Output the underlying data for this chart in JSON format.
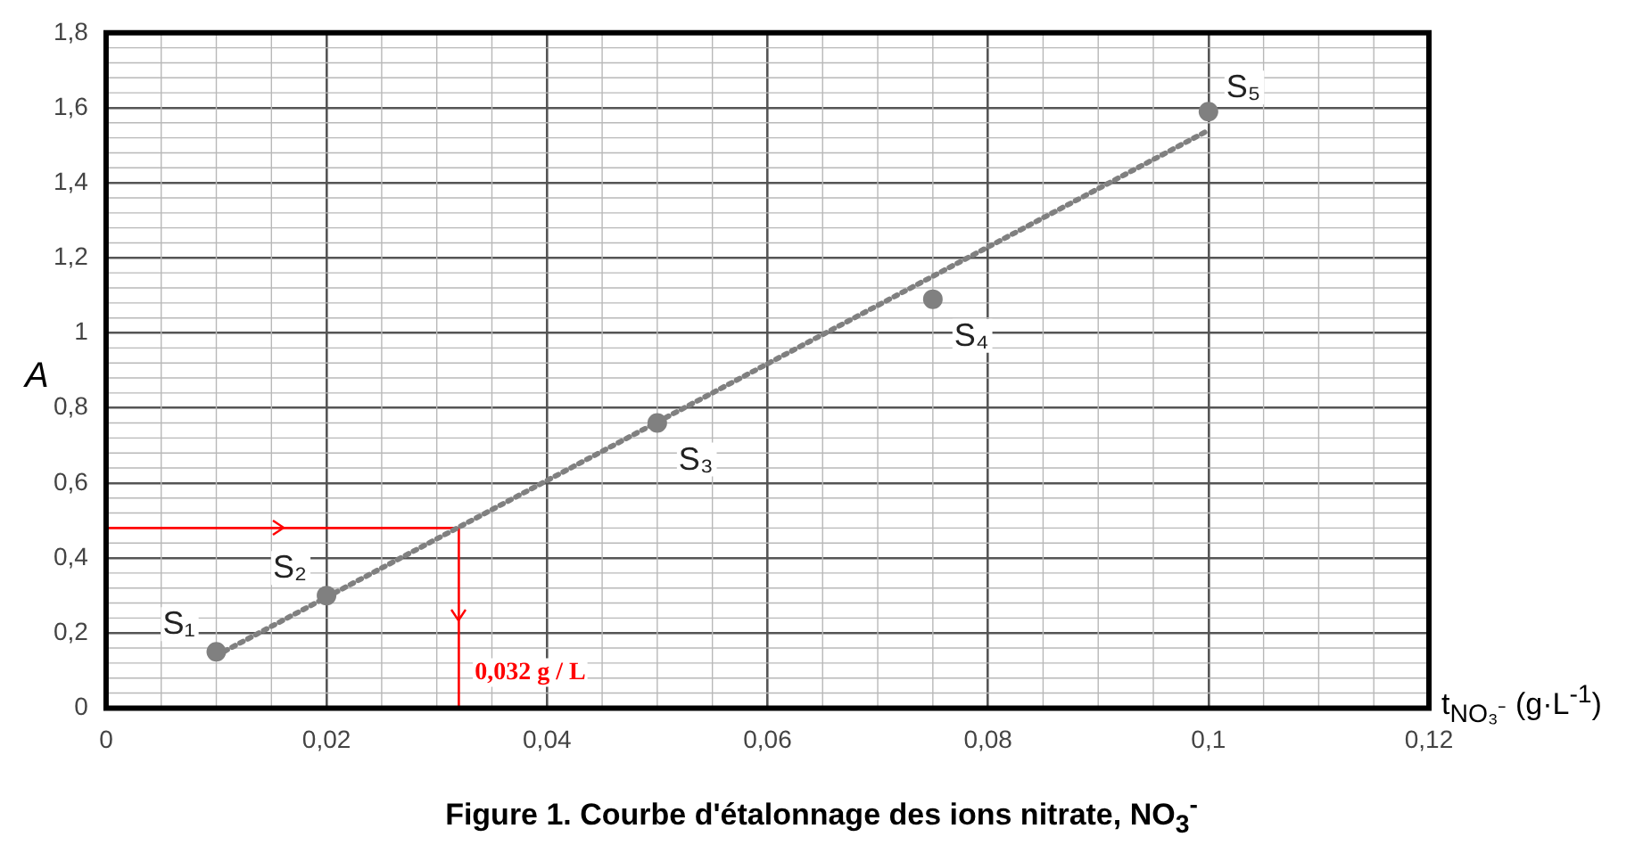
{
  "chart_data": {
    "type": "scatter",
    "title": "Figure 1. Courbe d'étalonnage des ions nitrate, NO$_{3}$$^{-}$",
    "xlabel": "t$_{NO₃⁻}$ (g·L$^{-1}$)",
    "ylabel": "A",
    "xlim": [
      0,
      0.12
    ],
    "xticks": [
      {
        "value": 0,
        "label": "0"
      },
      {
        "value": 0.02,
        "label": "0,02"
      },
      {
        "value": 0.04,
        "label": "0,04"
      },
      {
        "value": 0.06,
        "label": "0,06"
      },
      {
        "value": 0.08,
        "label": "0,08"
      },
      {
        "value": 0.1,
        "label": "0,1"
      },
      {
        "value": 0.12,
        "label": "0,12"
      }
    ],
    "ylim": [
      0,
      1.8
    ],
    "yticks": [
      {
        "value": 0,
        "label": "0"
      },
      {
        "value": 0.2,
        "label": "0,2"
      },
      {
        "value": 0.4,
        "label": "0,4"
      },
      {
        "value": 0.6,
        "label": "0,6"
      },
      {
        "value": 0.8,
        "label": "0,8"
      },
      {
        "value": 1,
        "label": "1"
      },
      {
        "value": 1.2,
        "label": "1,2"
      },
      {
        "value": 1.4,
        "label": "1,4"
      },
      {
        "value": 1.6,
        "label": "1,6"
      },
      {
        "value": 1.8,
        "label": "1,8"
      }
    ],
    "grid": true,
    "series": [
      {
        "type": "scatter",
        "color": "#808080",
        "marker": "circle",
        "x": [
          0.01,
          0.02,
          0.05,
          0.075,
          0.1
        ],
        "values": [
          0.15,
          0.3,
          0.76,
          1.09,
          1.59
        ],
        "value_labels": [
          "S₁",
          "S₂",
          "S₃",
          "S₄",
          "S₅"
        ]
      },
      {
        "type": "line",
        "color": "#808080",
        "marker": "none",
        "line_style": "dotted",
        "x": [
          0.01,
          0.1
        ],
        "values": [
          0.14,
          1.54
        ]
      },
      {
        "type": "line",
        "color": "#ff0000",
        "marker": "none",
        "line_style": "solid",
        "x": [
          0,
          0.032,
          0.032
        ],
        "values": [
          0.48,
          0.48,
          0
        ]
      }
    ],
    "annotations": [
      "0,032 g / L"
    ]
  }
}
